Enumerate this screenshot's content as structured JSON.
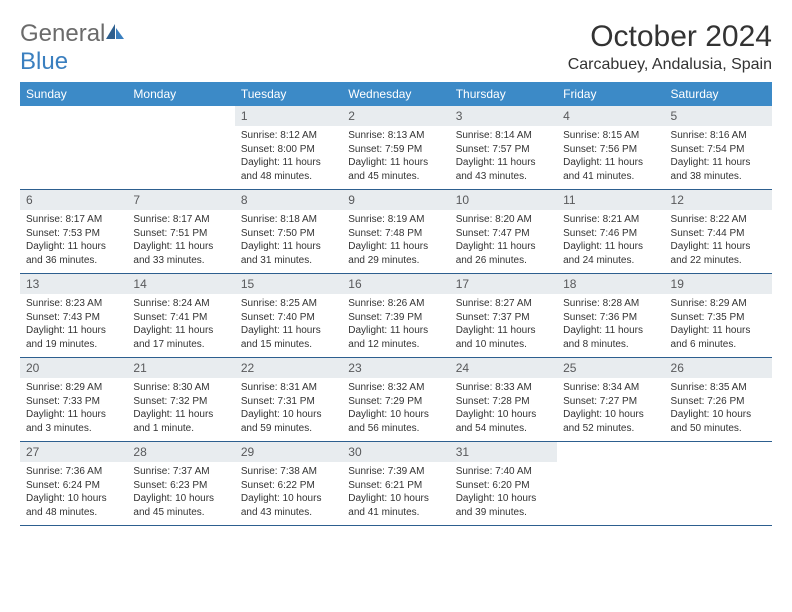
{
  "logo": {
    "text_general": "General",
    "text_blue": "Blue"
  },
  "header": {
    "title": "October 2024",
    "location": "Carcabuey, Andalusia, Spain"
  },
  "weekdays": [
    "Sunday",
    "Monday",
    "Tuesday",
    "Wednesday",
    "Thursday",
    "Friday",
    "Saturday"
  ],
  "colors": {
    "header_bg": "#3c8ac7",
    "header_text": "#ffffff",
    "daynum_bg": "#e8ecef",
    "daynum_text": "#58595b",
    "border": "#2d5f8f",
    "logo_gray": "#6b6b6b",
    "logo_blue": "#3a7fbf"
  },
  "weeks": [
    [
      null,
      null,
      {
        "n": "1",
        "sr": "Sunrise: 8:12 AM",
        "ss": "Sunset: 8:00 PM",
        "dl": "Daylight: 11 hours and 48 minutes."
      },
      {
        "n": "2",
        "sr": "Sunrise: 8:13 AM",
        "ss": "Sunset: 7:59 PM",
        "dl": "Daylight: 11 hours and 45 minutes."
      },
      {
        "n": "3",
        "sr": "Sunrise: 8:14 AM",
        "ss": "Sunset: 7:57 PM",
        "dl": "Daylight: 11 hours and 43 minutes."
      },
      {
        "n": "4",
        "sr": "Sunrise: 8:15 AM",
        "ss": "Sunset: 7:56 PM",
        "dl": "Daylight: 11 hours and 41 minutes."
      },
      {
        "n": "5",
        "sr": "Sunrise: 8:16 AM",
        "ss": "Sunset: 7:54 PM",
        "dl": "Daylight: 11 hours and 38 minutes."
      }
    ],
    [
      {
        "n": "6",
        "sr": "Sunrise: 8:17 AM",
        "ss": "Sunset: 7:53 PM",
        "dl": "Daylight: 11 hours and 36 minutes."
      },
      {
        "n": "7",
        "sr": "Sunrise: 8:17 AM",
        "ss": "Sunset: 7:51 PM",
        "dl": "Daylight: 11 hours and 33 minutes."
      },
      {
        "n": "8",
        "sr": "Sunrise: 8:18 AM",
        "ss": "Sunset: 7:50 PM",
        "dl": "Daylight: 11 hours and 31 minutes."
      },
      {
        "n": "9",
        "sr": "Sunrise: 8:19 AM",
        "ss": "Sunset: 7:48 PM",
        "dl": "Daylight: 11 hours and 29 minutes."
      },
      {
        "n": "10",
        "sr": "Sunrise: 8:20 AM",
        "ss": "Sunset: 7:47 PM",
        "dl": "Daylight: 11 hours and 26 minutes."
      },
      {
        "n": "11",
        "sr": "Sunrise: 8:21 AM",
        "ss": "Sunset: 7:46 PM",
        "dl": "Daylight: 11 hours and 24 minutes."
      },
      {
        "n": "12",
        "sr": "Sunrise: 8:22 AM",
        "ss": "Sunset: 7:44 PM",
        "dl": "Daylight: 11 hours and 22 minutes."
      }
    ],
    [
      {
        "n": "13",
        "sr": "Sunrise: 8:23 AM",
        "ss": "Sunset: 7:43 PM",
        "dl": "Daylight: 11 hours and 19 minutes."
      },
      {
        "n": "14",
        "sr": "Sunrise: 8:24 AM",
        "ss": "Sunset: 7:41 PM",
        "dl": "Daylight: 11 hours and 17 minutes."
      },
      {
        "n": "15",
        "sr": "Sunrise: 8:25 AM",
        "ss": "Sunset: 7:40 PM",
        "dl": "Daylight: 11 hours and 15 minutes."
      },
      {
        "n": "16",
        "sr": "Sunrise: 8:26 AM",
        "ss": "Sunset: 7:39 PM",
        "dl": "Daylight: 11 hours and 12 minutes."
      },
      {
        "n": "17",
        "sr": "Sunrise: 8:27 AM",
        "ss": "Sunset: 7:37 PM",
        "dl": "Daylight: 11 hours and 10 minutes."
      },
      {
        "n": "18",
        "sr": "Sunrise: 8:28 AM",
        "ss": "Sunset: 7:36 PM",
        "dl": "Daylight: 11 hours and 8 minutes."
      },
      {
        "n": "19",
        "sr": "Sunrise: 8:29 AM",
        "ss": "Sunset: 7:35 PM",
        "dl": "Daylight: 11 hours and 6 minutes."
      }
    ],
    [
      {
        "n": "20",
        "sr": "Sunrise: 8:29 AM",
        "ss": "Sunset: 7:33 PM",
        "dl": "Daylight: 11 hours and 3 minutes."
      },
      {
        "n": "21",
        "sr": "Sunrise: 8:30 AM",
        "ss": "Sunset: 7:32 PM",
        "dl": "Daylight: 11 hours and 1 minute."
      },
      {
        "n": "22",
        "sr": "Sunrise: 8:31 AM",
        "ss": "Sunset: 7:31 PM",
        "dl": "Daylight: 10 hours and 59 minutes."
      },
      {
        "n": "23",
        "sr": "Sunrise: 8:32 AM",
        "ss": "Sunset: 7:29 PM",
        "dl": "Daylight: 10 hours and 56 minutes."
      },
      {
        "n": "24",
        "sr": "Sunrise: 8:33 AM",
        "ss": "Sunset: 7:28 PM",
        "dl": "Daylight: 10 hours and 54 minutes."
      },
      {
        "n": "25",
        "sr": "Sunrise: 8:34 AM",
        "ss": "Sunset: 7:27 PM",
        "dl": "Daylight: 10 hours and 52 minutes."
      },
      {
        "n": "26",
        "sr": "Sunrise: 8:35 AM",
        "ss": "Sunset: 7:26 PM",
        "dl": "Daylight: 10 hours and 50 minutes."
      }
    ],
    [
      {
        "n": "27",
        "sr": "Sunrise: 7:36 AM",
        "ss": "Sunset: 6:24 PM",
        "dl": "Daylight: 10 hours and 48 minutes."
      },
      {
        "n": "28",
        "sr": "Sunrise: 7:37 AM",
        "ss": "Sunset: 6:23 PM",
        "dl": "Daylight: 10 hours and 45 minutes."
      },
      {
        "n": "29",
        "sr": "Sunrise: 7:38 AM",
        "ss": "Sunset: 6:22 PM",
        "dl": "Daylight: 10 hours and 43 minutes."
      },
      {
        "n": "30",
        "sr": "Sunrise: 7:39 AM",
        "ss": "Sunset: 6:21 PM",
        "dl": "Daylight: 10 hours and 41 minutes."
      },
      {
        "n": "31",
        "sr": "Sunrise: 7:40 AM",
        "ss": "Sunset: 6:20 PM",
        "dl": "Daylight: 10 hours and 39 minutes."
      },
      null,
      null
    ]
  ]
}
